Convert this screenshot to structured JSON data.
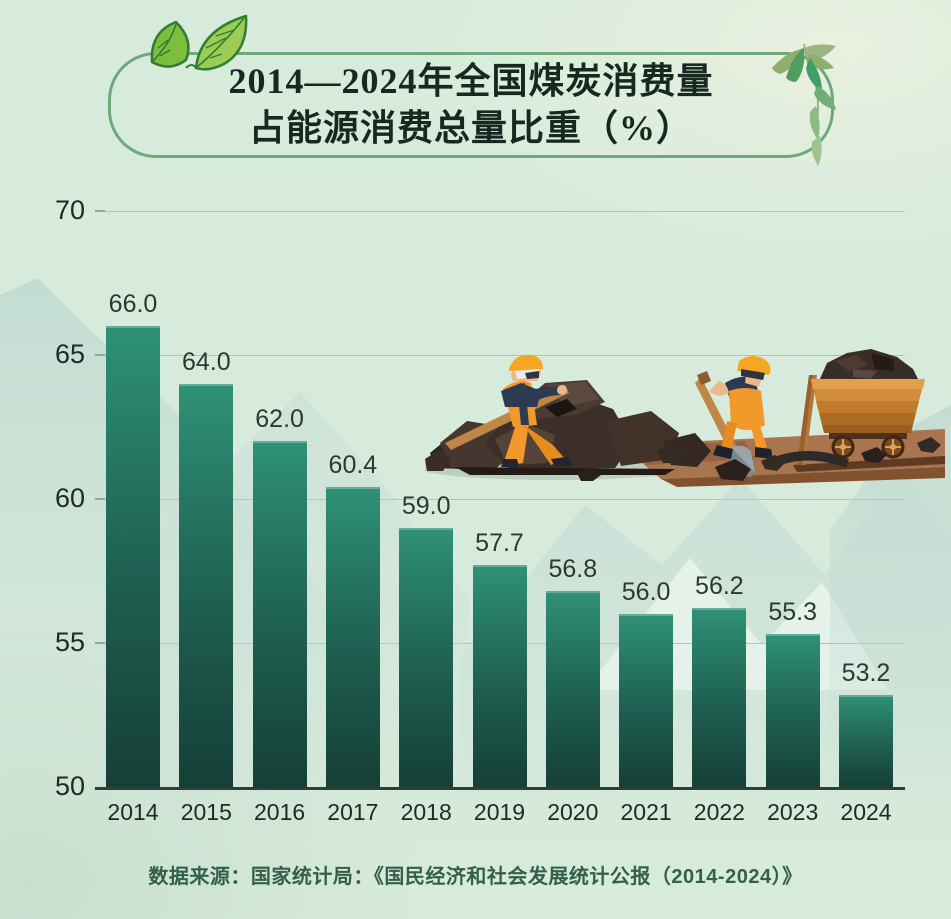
{
  "title": {
    "line1": "2014—2024年全国煤炭消费量",
    "line2": "占能源消费总量比重（%）"
  },
  "source_note": "数据来源：国家统计局：《国民经济和社会发展统计公报（2014-2024）》",
  "chart_data": {
    "type": "bar",
    "title": "2014—2024年全国煤炭消费量占能源消费总量比重（%）",
    "categories": [
      "2014",
      "2015",
      "2016",
      "2017",
      "2018",
      "2019",
      "2020",
      "2021",
      "2022",
      "2023",
      "2024"
    ],
    "values": [
      66.0,
      64.0,
      62.0,
      60.4,
      59.0,
      57.7,
      56.8,
      56.0,
      56.2,
      55.3,
      53.2
    ],
    "value_labels": [
      "66.0",
      "64.0",
      "62.0",
      "60.4",
      "59.0",
      "57.7",
      "56.8",
      "56.0",
      "56.2",
      "55.3",
      "53.2"
    ],
    "xlabel": "",
    "ylabel": "",
    "ylim": [
      50,
      70
    ],
    "yticks": [
      50,
      55,
      60,
      65,
      70
    ],
    "grid": true,
    "legend_position": "none",
    "bar_colors": {
      "top": "#2f9176",
      "bottom": "#163f37"
    }
  },
  "colors": {
    "background": "#d7ebdc",
    "title_border": "#6fa87b",
    "title_text": "#16281f",
    "axis_text": "#1e2a24",
    "value_text": "#2c3831",
    "gridline": "#b0c6bc",
    "baseline": "#2f3e37",
    "source_text": "#33604b"
  },
  "decorations": {
    "top_left": "green-leaves-icon",
    "top_right": "bamboo-leaves-icon",
    "center": "coal-miners-illustration",
    "background": "mountain-silhouettes"
  }
}
